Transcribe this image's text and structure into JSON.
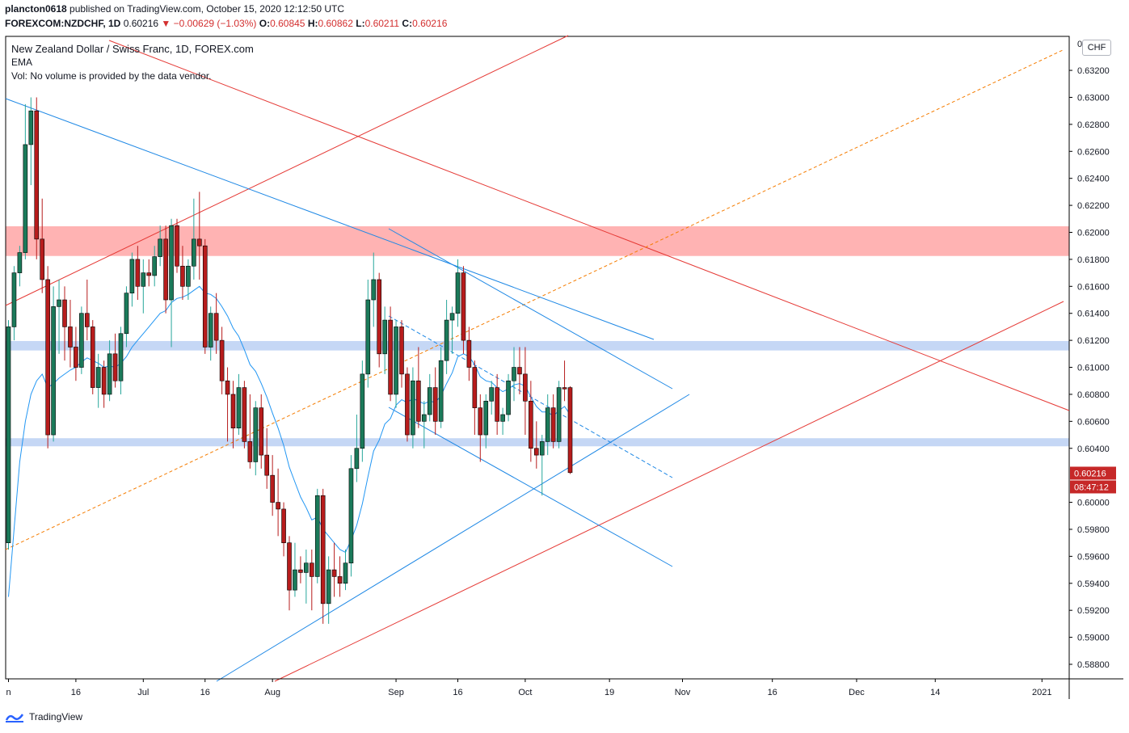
{
  "header": {
    "user": "plancton0618",
    "published_text": "published on TradingView.com, October 15, 2020 12:12:50 UTC",
    "symbol": "FOREXCOM:NZDCHF, 1D",
    "last_price": "0.60216",
    "change": "−0.00629 (−1.03%)",
    "o_label": "O:",
    "o_value": "0.60845",
    "h_label": "H:",
    "h_value": "0.60862",
    "l_label": "L:",
    "l_value": "0.60211",
    "c_label": "C:",
    "c_value": "0.60216"
  },
  "legend": {
    "title": "New Zealand Dollar / Swiss Franc, 1D, FOREX.com",
    "indicator": "EMA",
    "volume_note": "Vol: No volume is provided by the data vendor."
  },
  "axis": {
    "currency": "CHF",
    "top_partial_label": "0.6...",
    "current_price_label": "0.60216",
    "countdown_label": "08:47:12"
  },
  "footer": {
    "brand": "TradingView"
  },
  "colors": {
    "up": "#26a69a",
    "up_fill": "#1b7a5a",
    "down": "#b71c1c",
    "down_fill": "#b71c1c",
    "ema": "#2196f3",
    "trend_blue": "#1e88e5",
    "trend_red": "#e53935",
    "dashed_orange": "#f57c00",
    "zone_red": "#ffb3b3",
    "zone_blue": "#c5d7f5",
    "price_tag": "#c62828"
  },
  "chart_data": {
    "type": "candlestick",
    "title": "New Zealand Dollar / Swiss Franc, 1D, FOREX.com",
    "ylim": [
      0.587,
      0.634
    ],
    "y_ticks": [
      0.588,
      0.59,
      0.592,
      0.594,
      0.596,
      0.598,
      0.6,
      0.604,
      0.606,
      0.608,
      0.61,
      0.612,
      0.614,
      0.616,
      0.618,
      0.62,
      0.622,
      0.624,
      0.626,
      0.628,
      0.63,
      0.632
    ],
    "y_tick_labels": [
      "0.58800",
      "0.59000",
      "0.59200",
      "0.59400",
      "0.59600",
      "0.59800",
      "0.60000",
      "0.60400",
      "0.60600",
      "0.60800",
      "0.61000",
      "0.61200",
      "0.61400",
      "0.61600",
      "0.61800",
      "0.62000",
      "0.62200",
      "0.62400",
      "0.62600",
      "0.62800",
      "0.63000",
      "0.63200"
    ],
    "x_ticks": [
      {
        "label": "n",
        "day": 0
      },
      {
        "label": "16",
        "day": 12
      },
      {
        "label": "Jul",
        "day": 24
      },
      {
        "label": "16",
        "day": 35
      },
      {
        "label": "Aug",
        "day": 47
      },
      {
        "label": "Sep",
        "day": 69
      },
      {
        "label": "16",
        "day": 80
      },
      {
        "label": "Oct",
        "day": 92
      },
      {
        "label": "19",
        "day": 107
      },
      {
        "label": "Nov",
        "day": 120
      },
      {
        "label": "16",
        "day": 136
      },
      {
        "label": "Dec",
        "day": 151
      },
      {
        "label": "14",
        "day": 165
      },
      {
        "label": "2021",
        "day": 184
      }
    ],
    "candles": [
      [
        0.597,
        0.6135,
        0.5965,
        0.613
      ],
      [
        0.613,
        0.6175,
        0.612,
        0.617
      ],
      [
        0.617,
        0.619,
        0.616,
        0.6185
      ],
      [
        0.6185,
        0.6295,
        0.618,
        0.6265
      ],
      [
        0.6265,
        0.63,
        0.6235,
        0.629
      ],
      [
        0.629,
        0.63,
        0.618,
        0.6195
      ],
      [
        0.6195,
        0.6225,
        0.6155,
        0.6165
      ],
      [
        0.6165,
        0.6175,
        0.604,
        0.605
      ],
      [
        0.605,
        0.616,
        0.6045,
        0.6145
      ],
      [
        0.6145,
        0.6165,
        0.611,
        0.615
      ],
      [
        0.615,
        0.616,
        0.6105,
        0.613
      ],
      [
        0.613,
        0.615,
        0.61,
        0.6115
      ],
      [
        0.6115,
        0.613,
        0.609,
        0.61
      ],
      [
        0.61,
        0.6145,
        0.6095,
        0.614
      ],
      [
        0.614,
        0.6165,
        0.612,
        0.613
      ],
      [
        0.613,
        0.6135,
        0.608,
        0.6085
      ],
      [
        0.6085,
        0.611,
        0.607,
        0.61
      ],
      [
        0.61,
        0.6105,
        0.607,
        0.608
      ],
      [
        0.608,
        0.612,
        0.6075,
        0.611
      ],
      [
        0.611,
        0.6125,
        0.6085,
        0.609
      ],
      [
        0.609,
        0.613,
        0.608,
        0.6125
      ],
      [
        0.6125,
        0.616,
        0.6115,
        0.6155
      ],
      [
        0.6155,
        0.6185,
        0.6145,
        0.618
      ],
      [
        0.618,
        0.619,
        0.615,
        0.616
      ],
      [
        0.616,
        0.618,
        0.614,
        0.617
      ],
      [
        0.617,
        0.618,
        0.616,
        0.6168
      ],
      [
        0.6168,
        0.619,
        0.616,
        0.6182
      ],
      [
        0.6182,
        0.6205,
        0.6175,
        0.6195
      ],
      [
        0.6195,
        0.6205,
        0.614,
        0.615
      ],
      [
        0.615,
        0.621,
        0.6115,
        0.6205
      ],
      [
        0.6205,
        0.621,
        0.617,
        0.6175
      ],
      [
        0.6175,
        0.619,
        0.615,
        0.616
      ],
      [
        0.616,
        0.618,
        0.615,
        0.6175
      ],
      [
        0.6175,
        0.6225,
        0.6165,
        0.6195
      ],
      [
        0.6195,
        0.623,
        0.6165,
        0.619
      ],
      [
        0.619,
        0.6195,
        0.611,
        0.6115
      ],
      [
        0.6115,
        0.6145,
        0.6105,
        0.614
      ],
      [
        0.614,
        0.6155,
        0.611,
        0.612
      ],
      [
        0.612,
        0.613,
        0.608,
        0.609
      ],
      [
        0.609,
        0.61,
        0.6045,
        0.608
      ],
      [
        0.608,
        0.609,
        0.604,
        0.6055
      ],
      [
        0.6055,
        0.6095,
        0.605,
        0.6085
      ],
      [
        0.6085,
        0.609,
        0.604,
        0.6045
      ],
      [
        0.6045,
        0.608,
        0.6025,
        0.603
      ],
      [
        0.603,
        0.6075,
        0.602,
        0.607
      ],
      [
        0.607,
        0.608,
        0.6025,
        0.6035
      ],
      [
        0.6035,
        0.6055,
        0.601,
        0.602
      ],
      [
        0.602,
        0.6035,
        0.599,
        0.6
      ],
      [
        0.6,
        0.6025,
        0.5975,
        0.5995
      ],
      [
        0.5995,
        0.6,
        0.596,
        0.597
      ],
      [
        0.597,
        0.5975,
        0.592,
        0.5935
      ],
      [
        0.5935,
        0.597,
        0.593,
        0.595
      ],
      [
        0.595,
        0.596,
        0.594,
        0.5948
      ],
      [
        0.5948,
        0.5965,
        0.5925,
        0.5955
      ],
      [
        0.5955,
        0.5965,
        0.592,
        0.5945
      ],
      [
        0.5945,
        0.601,
        0.594,
        0.6005
      ],
      [
        0.6005,
        0.601,
        0.591,
        0.5925
      ],
      [
        0.5925,
        0.596,
        0.591,
        0.595
      ],
      [
        0.595,
        0.597,
        0.593,
        0.5945
      ],
      [
        0.5945,
        0.596,
        0.593,
        0.594
      ],
      [
        0.594,
        0.5965,
        0.5935,
        0.5955
      ],
      [
        0.5955,
        0.6035,
        0.5945,
        0.6025
      ],
      [
        0.6025,
        0.6065,
        0.6015,
        0.604
      ],
      [
        0.604,
        0.6105,
        0.603,
        0.6095
      ],
      [
        0.6095,
        0.6165,
        0.6085,
        0.615
      ],
      [
        0.615,
        0.6185,
        0.613,
        0.6165
      ],
      [
        0.6165,
        0.617,
        0.61,
        0.611
      ],
      [
        0.611,
        0.6145,
        0.6095,
        0.6135
      ],
      [
        0.6135,
        0.6145,
        0.6075,
        0.608
      ],
      [
        0.608,
        0.6135,
        0.607,
        0.613
      ],
      [
        0.613,
        0.6135,
        0.6085,
        0.6095
      ],
      [
        0.6095,
        0.61,
        0.6045,
        0.605
      ],
      [
        0.605,
        0.61,
        0.604,
        0.609
      ],
      [
        0.609,
        0.6115,
        0.6055,
        0.606
      ],
      [
        0.606,
        0.6075,
        0.604,
        0.6065
      ],
      [
        0.6065,
        0.6095,
        0.606,
        0.6085
      ],
      [
        0.6085,
        0.61,
        0.605,
        0.606
      ],
      [
        0.606,
        0.6115,
        0.6055,
        0.6105
      ],
      [
        0.6105,
        0.615,
        0.6095,
        0.6135
      ],
      [
        0.6135,
        0.6145,
        0.611,
        0.614
      ],
      [
        0.614,
        0.618,
        0.613,
        0.617
      ],
      [
        0.617,
        0.6175,
        0.611,
        0.612
      ],
      [
        0.612,
        0.613,
        0.609,
        0.61
      ],
      [
        0.61,
        0.6105,
        0.605,
        0.607
      ],
      [
        0.607,
        0.608,
        0.603,
        0.605
      ],
      [
        0.605,
        0.608,
        0.604,
        0.6075
      ],
      [
        0.6075,
        0.609,
        0.6065,
        0.6085
      ],
      [
        0.6085,
        0.6095,
        0.605,
        0.606
      ],
      [
        0.606,
        0.607,
        0.605,
        0.6065
      ],
      [
        0.6065,
        0.6095,
        0.606,
        0.609
      ],
      [
        0.609,
        0.6115,
        0.6075,
        0.61
      ],
      [
        0.61,
        0.6115,
        0.608,
        0.6095
      ],
      [
        0.6095,
        0.6115,
        0.605,
        0.6075
      ],
      [
        0.6075,
        0.609,
        0.603,
        0.604
      ],
      [
        0.604,
        0.606,
        0.6025,
        0.6035
      ],
      [
        0.6035,
        0.605,
        0.6005,
        0.6045
      ],
      [
        0.6045,
        0.608,
        0.6035,
        0.607
      ],
      [
        0.607,
        0.608,
        0.604,
        0.6045
      ],
      [
        0.6045,
        0.609,
        0.604,
        0.6085
      ],
      [
        0.6085,
        0.6105,
        0.6075,
        0.6084
      ],
      [
        0.6085,
        0.6086,
        0.6021,
        0.6022
      ]
    ],
    "ema": [
      0.593,
      0.598,
      0.603,
      0.606,
      0.608,
      0.609,
      0.6095,
      0.6085,
      0.6088,
      0.6092,
      0.6095,
      0.6098,
      0.61,
      0.6104,
      0.6107,
      0.6105,
      0.6103,
      0.61,
      0.6101,
      0.61,
      0.6103,
      0.6108,
      0.6115,
      0.612,
      0.6125,
      0.613,
      0.6135,
      0.614,
      0.6142,
      0.6148,
      0.6151,
      0.6152,
      0.6154,
      0.6157,
      0.616,
      0.6155,
      0.6154,
      0.6151,
      0.6145,
      0.6138,
      0.6129,
      0.6123,
      0.6113,
      0.6102,
      0.6097,
      0.6088,
      0.6078,
      0.6066,
      0.6055,
      0.6042,
      0.6026,
      0.6015,
      0.6004,
      0.5996,
      0.5987,
      0.5989,
      0.598,
      0.5975,
      0.597,
      0.5965,
      0.5963,
      0.5972,
      0.5983,
      0.5999,
      0.6019,
      0.6038,
      0.6046,
      0.6058,
      0.6062,
      0.6072,
      0.6076,
      0.6074,
      0.6077,
      0.6075,
      0.6073,
      0.6075,
      0.6074,
      0.6079,
      0.6088,
      0.6096,
      0.6108,
      0.611,
      0.6108,
      0.6102,
      0.6093,
      0.609,
      0.6089,
      0.6085,
      0.6082,
      0.6084,
      0.6087,
      0.6088,
      0.6086,
      0.6078,
      0.6071,
      0.6067,
      0.6067,
      0.6064,
      0.6068,
      0.6071,
      0.6065
    ]
  }
}
